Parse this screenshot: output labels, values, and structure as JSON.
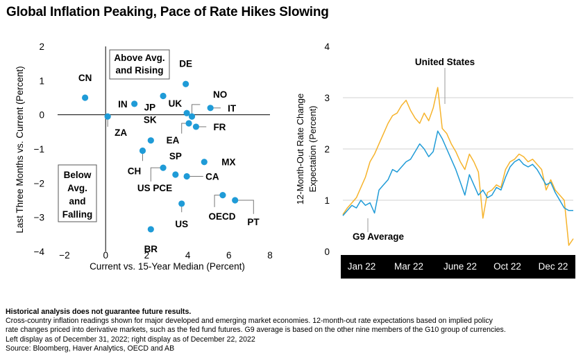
{
  "title": "Global Inflation Peaking, Pace of Rate Hikes Slowing",
  "colors": {
    "scatter_dot": "#1f9bd7",
    "g9_line": "#1f9bd7",
    "us_line": "#f6b32b",
    "time_axis_bg": "#000000"
  },
  "chart_data": [
    {
      "type": "scatter",
      "xlabel": "Current vs. 15-Year Median (Percent)",
      "ylabel": "Last Three Months vs. Current (Percent)",
      "xlim": [
        -2,
        8
      ],
      "ylim": [
        -4,
        2
      ],
      "xticks": [
        "−2",
        "0",
        "2",
        "4",
        "6",
        "8"
      ],
      "yticks": [
        "2",
        "1",
        "0",
        "−1",
        "−2",
        "−3",
        "−4"
      ],
      "quadrant_labels": {
        "upper_left": "Above Avg. and Rising",
        "lower_left": "Below Avg. and Falling"
      },
      "points": [
        {
          "label": "CN",
          "x": -1.0,
          "y": 0.5
        },
        {
          "label": "IN",
          "x": 1.4,
          "y": 0.32
        },
        {
          "label": "JP",
          "x": 2.8,
          "y": 0.55
        },
        {
          "label": "DE",
          "x": 3.9,
          "y": 0.9
        },
        {
          "label": "UK",
          "x": 3.95,
          "y": 0.05
        },
        {
          "label": "NO",
          "x": 4.2,
          "y": -0.05
        },
        {
          "label": "IT",
          "x": 5.1,
          "y": 0.2
        },
        {
          "label": "FR",
          "x": 4.4,
          "y": -0.35
        },
        {
          "label": "EA",
          "x": 4.05,
          "y": -0.25
        },
        {
          "label": "ZA",
          "x": 0.1,
          "y": -0.05
        },
        {
          "label": "SK",
          "x": 2.2,
          "y": -0.75
        },
        {
          "label": "CH",
          "x": 1.8,
          "y": -1.05
        },
        {
          "label": "SP",
          "x": 3.4,
          "y": -1.75
        },
        {
          "label": "US PCE",
          "x": 2.8,
          "y": -1.55
        },
        {
          "label": "MX",
          "x": 4.8,
          "y": -1.38
        },
        {
          "label": "CA",
          "x": 3.95,
          "y": -1.8
        },
        {
          "label": "US",
          "x": 3.7,
          "y": -2.6
        },
        {
          "label": "OECD",
          "x": 5.7,
          "y": -2.35
        },
        {
          "label": "PT",
          "x": 6.3,
          "y": -2.5
        },
        {
          "label": "BR",
          "x": 2.2,
          "y": -3.35
        }
      ]
    },
    {
      "type": "line",
      "xlabel": "",
      "ylabel": "12-Month-Out Rate Change Expectation (Percent)",
      "ylim": [
        0,
        4
      ],
      "yticks": [
        "4",
        "3",
        "2",
        "1",
        "0"
      ],
      "x_labels": [
        "Jan 22",
        "Mar 22",
        "June 22",
        "Oct 22",
        "Dec 22"
      ],
      "x": [
        "Jan 1",
        "Jan 8",
        "Jan 15",
        "Jan 22",
        "Jan 29",
        "Feb 5",
        "Feb 12",
        "Feb 19",
        "Feb 26",
        "Mar 5",
        "Mar 12",
        "Mar 19",
        "Mar 26",
        "Apr 2",
        "Apr 9",
        "Apr 16",
        "Apr 23",
        "Apr 30",
        "May 7",
        "May 14",
        "May 21",
        "May 28",
        "Jun 4",
        "Jun 11",
        "Jun 18",
        "Jun 25",
        "Jul 2",
        "Jul 9",
        "Jul 16",
        "Jul 23",
        "Jul 30",
        "Aug 6",
        "Aug 13",
        "Aug 20",
        "Aug 27",
        "Sep 3",
        "Sep 10",
        "Sep 17",
        "Sep 24",
        "Oct 1",
        "Oct 8",
        "Oct 15",
        "Oct 22",
        "Oct 29",
        "Nov 5",
        "Nov 12",
        "Nov 19",
        "Nov 26",
        "Dec 3",
        "Dec 10",
        "Dec 17",
        "Dec 22"
      ],
      "series": [
        {
          "name": "United States",
          "values": [
            0.72,
            0.85,
            0.95,
            1.05,
            1.25,
            1.45,
            1.75,
            1.9,
            2.1,
            2.3,
            2.5,
            2.65,
            2.7,
            2.85,
            2.95,
            2.75,
            2.6,
            2.5,
            2.7,
            2.55,
            2.8,
            3.2,
            2.4,
            2.3,
            2.1,
            1.95,
            1.75,
            1.6,
            1.9,
            1.75,
            1.55,
            0.65,
            1.15,
            1.2,
            1.3,
            1.25,
            1.6,
            1.75,
            1.8,
            1.9,
            1.85,
            1.75,
            1.8,
            1.7,
            1.6,
            1.2,
            1.4,
            1.2,
            1.1,
            1.0,
            0.12,
            0.25
          ]
        },
        {
          "name": "G9 Average",
          "values": [
            0.7,
            0.8,
            0.9,
            0.85,
            1.0,
            0.9,
            0.95,
            0.75,
            1.2,
            1.3,
            1.4,
            1.6,
            1.55,
            1.65,
            1.75,
            1.8,
            1.95,
            2.1,
            2.0,
            1.85,
            1.95,
            2.35,
            2.2,
            2.0,
            1.8,
            1.6,
            1.35,
            1.1,
            1.5,
            1.3,
            1.1,
            1.2,
            1.05,
            1.1,
            1.25,
            1.2,
            1.45,
            1.65,
            1.75,
            1.8,
            1.7,
            1.65,
            1.7,
            1.6,
            1.45,
            1.3,
            1.35,
            1.15,
            1.0,
            0.85,
            0.8,
            0.8
          ]
        }
      ]
    }
  ],
  "footer": {
    "disclaimer": "Historical analysis does not guarantee future results.",
    "note_line1": "Cross-country inflation readings shown for major developed and emerging market economies. 12-month-out rate expectations based on implied policy",
    "note_line2": "rate changes priced into derivative markets, such as the fed fund futures. G9 average is based on the other nine members of the G10 group of  currencies.",
    "note_line3": "Left display as of December 31, 2022; right display as of December 22, 2022",
    "source": "Source: Bloomberg, Haver Analytics, OECD and AB"
  }
}
